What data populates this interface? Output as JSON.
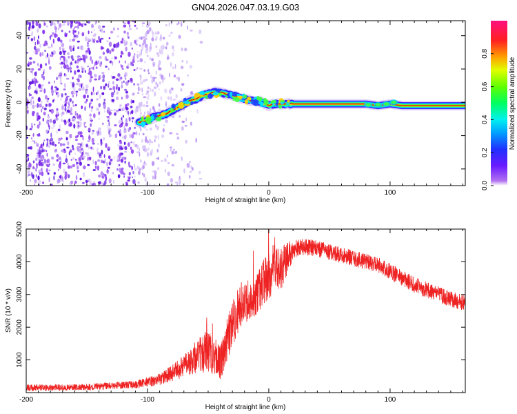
{
  "title": "GN04.2026.047.03.19.G03",
  "colors": {
    "snr_line": "#ee2222",
    "ridge_core": "#cc1111",
    "axis": "#000000",
    "noise": "#7a22ee"
  },
  "chart_data": [
    {
      "type": "heatmap",
      "name": "spectrogram",
      "xlabel": "Height of straight line (km)",
      "ylabel": "Frequency (Hz)",
      "xlim": [
        -200,
        162
      ],
      "ylim": [
        -50,
        49
      ],
      "xticks": [
        -200,
        -100,
        0,
        100
      ],
      "xtick_labels": [
        "-200",
        "-100",
        "0",
        "100"
      ],
      "yticks": [
        -40,
        -20,
        0,
        20,
        40
      ],
      "ytick_labels": [
        "-40",
        "-20",
        "0",
        "20",
        "40"
      ],
      "ridge": {
        "x": [
          -107,
          -100,
          -95,
          -90,
          -85,
          -80,
          -75,
          -70,
          -65,
          -60,
          -55,
          -50,
          -45,
          -40,
          -35,
          -30,
          -25,
          -20,
          -15,
          -10,
          -5,
          0,
          5,
          10,
          20,
          40,
          60,
          80,
          90,
          100,
          110,
          130,
          162
        ],
        "y": [
          -12,
          -11,
          -9,
          -8,
          -7,
          -5,
          -3,
          -1,
          1,
          2,
          4,
          5,
          6,
          6,
          5,
          4,
          3,
          2,
          1,
          1,
          0,
          -2,
          -1,
          -1,
          -1,
          -1,
          -1,
          -1,
          -2,
          -1,
          -2,
          -2,
          -2
        ]
      },
      "noise_region_x": [
        -200,
        -75
      ],
      "colorbar": {
        "label": "Normalized spectral amplitude",
        "ticks": [
          0.0,
          0.2,
          0.4,
          0.6,
          0.8
        ],
        "tick_labels": [
          "0.0",
          "0.2",
          "0.4",
          "0.6",
          "0.8"
        ],
        "range": [
          0,
          1
        ]
      }
    },
    {
      "type": "line",
      "name": "snr",
      "xlabel": "Height of straight line (km)",
      "ylabel": "SNR (10 * v/v)",
      "xlim": [
        -200,
        162
      ],
      "ylim": [
        0,
        5000
      ],
      "xticks": [
        -200,
        -100,
        0,
        100
      ],
      "xtick_labels": [
        "-200",
        "-100",
        "0",
        "100"
      ],
      "yticks": [
        1000,
        2000,
        3000,
        4000,
        5000
      ],
      "ytick_labels": [
        "1000",
        "2000",
        "3000",
        "4000",
        "5000"
      ],
      "envelope": {
        "x": [
          -200,
          -150,
          -110,
          -90,
          -80,
          -70,
          -60,
          -50,
          -40,
          -35,
          -30,
          -25,
          -20,
          -15,
          -10,
          -5,
          0,
          5,
          10,
          15,
          20,
          25,
          30,
          40,
          50,
          60,
          70,
          80,
          90,
          100,
          110,
          120,
          130,
          140,
          150,
          162
        ],
        "mean": [
          150,
          170,
          250,
          400,
          600,
          800,
          1100,
          1300,
          900,
          1500,
          2100,
          2500,
          2700,
          2800,
          3000,
          3300,
          3600,
          3900,
          3800,
          4100,
          4350,
          4450,
          4450,
          4400,
          4300,
          4200,
          4100,
          4000,
          3900,
          3700,
          3500,
          3300,
          3150,
          3000,
          2850,
          2750
        ],
        "spread": [
          100,
          100,
          120,
          180,
          250,
          350,
          500,
          700,
          500,
          700,
          700,
          700,
          600,
          600,
          600,
          700,
          800,
          800,
          700,
          500,
          300,
          250,
          250,
          250,
          250,
          250,
          250,
          250,
          250,
          250,
          250,
          250,
          250,
          250,
          250,
          250
        ]
      }
    }
  ]
}
